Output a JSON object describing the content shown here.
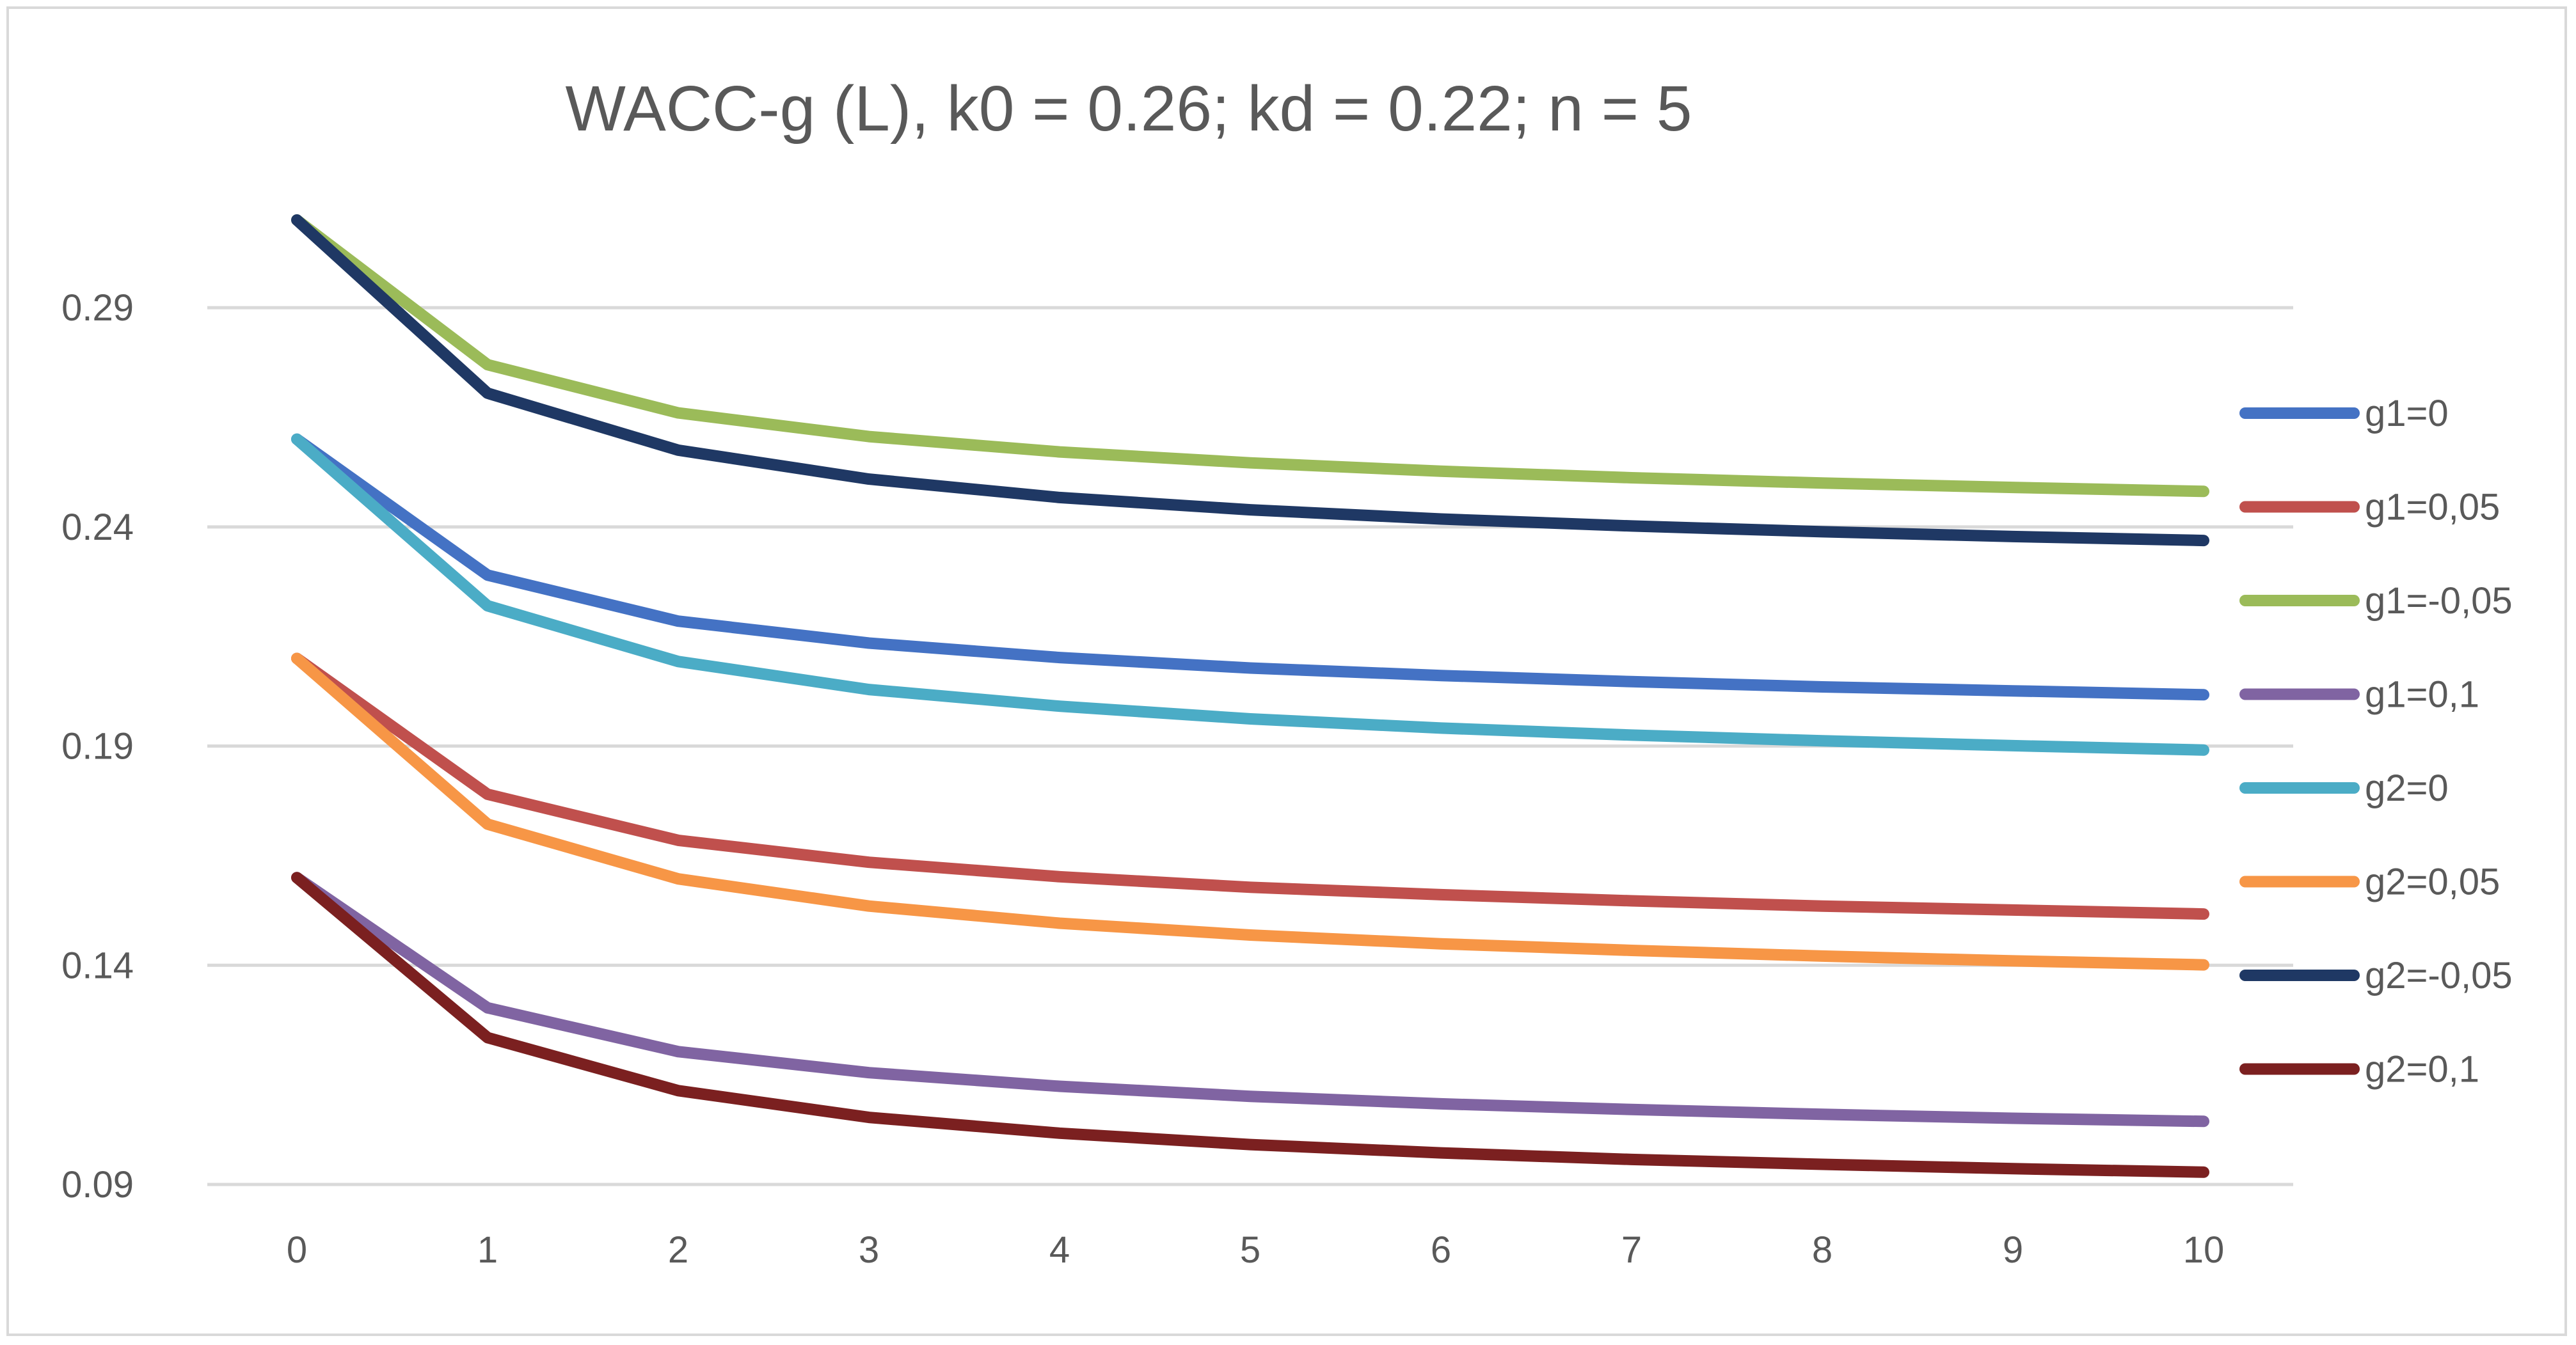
{
  "chart_data": {
    "type": "line",
    "title": "WACC-g (L), k0 = 0.26; kd = 0.22; n = 5",
    "xlabel": "",
    "ylabel": "",
    "x": [
      0,
      1,
      2,
      3,
      4,
      5,
      6,
      7,
      8,
      9,
      10
    ],
    "x_tick_labels": [
      "0",
      "1",
      "2",
      "3",
      "4",
      "5",
      "6",
      "7",
      "8",
      "9",
      "10"
    ],
    "y_ticks": [
      0.09,
      0.14,
      0.19,
      0.24,
      0.29
    ],
    "y_tick_labels": [
      "0.09",
      "0.14",
      "0.19",
      "0.24",
      "0.29"
    ],
    "ylim": [
      0.09,
      0.31
    ],
    "grid": true,
    "legend_position": "right",
    "series": [
      {
        "name": "g1=0",
        "color": "#4472c4",
        "values": [
          0.26,
          0.229,
          0.2185,
          0.2135,
          0.2102,
          0.2078,
          0.2061,
          0.2047,
          0.2035,
          0.2026,
          0.2017
        ]
      },
      {
        "name": "g1=0,05",
        "color": "#c0504d",
        "values": [
          0.21,
          0.179,
          0.1685,
          0.1635,
          0.1602,
          0.1578,
          0.1561,
          0.1547,
          0.1535,
          0.1526,
          0.1517
        ]
      },
      {
        "name": "g1=-0,05",
        "color": "#9bbb59",
        "values": [
          0.31,
          0.277,
          0.266,
          0.2606,
          0.2571,
          0.2546,
          0.2527,
          0.2512,
          0.25,
          0.249,
          0.2481
        ]
      },
      {
        "name": "g1=0,1",
        "color": "#8064a2",
        "values": [
          0.16,
          0.1303,
          0.1203,
          0.1155,
          0.1124,
          0.1101,
          0.1084,
          0.1071,
          0.106,
          0.1051,
          0.1044
        ]
      },
      {
        "name": "g2=0",
        "color": "#4bacc6",
        "values": [
          0.26,
          0.222,
          0.2093,
          0.2029,
          0.1991,
          0.1962,
          0.1941,
          0.1925,
          0.1912,
          0.1901,
          0.1891
        ]
      },
      {
        "name": "g2=0,05",
        "color": "#f79646",
        "values": [
          0.21,
          0.1722,
          0.1597,
          0.1535,
          0.1496,
          0.1469,
          0.1449,
          0.1434,
          0.1421,
          0.141,
          0.1401
        ]
      },
      {
        "name": "g2=-0,05",
        "color": "#1f3864",
        "values": [
          0.31,
          0.2705,
          0.2575,
          0.2509,
          0.2467,
          0.2439,
          0.2418,
          0.2402,
          0.2389,
          0.2378,
          0.2369
        ]
      },
      {
        "name": "g2=0,1",
        "color": "#7b2020",
        "values": [
          0.16,
          0.1235,
          0.1114,
          0.1053,
          0.1017,
          0.0991,
          0.0972,
          0.0957,
          0.0946,
          0.0936,
          0.0928
        ]
      }
    ]
  }
}
